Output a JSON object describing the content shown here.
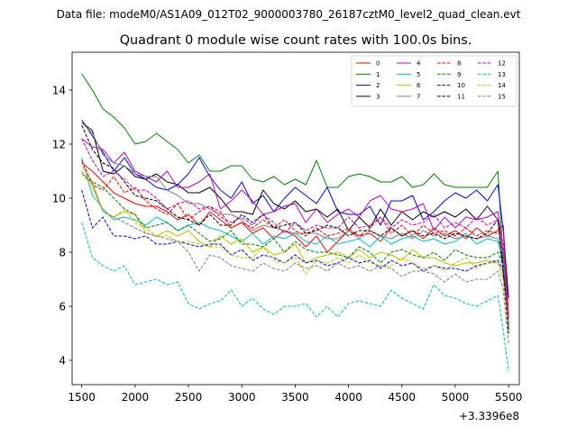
{
  "suptitle": "Data file: modeM0/AS1A09_012T02_9000003780_26187cztM0_level2_quad_clean.evt",
  "chart_data": {
    "type": "line",
    "title": "Quadrant 0 module wise count rates with 100.0s bins.",
    "xlabel": "",
    "ylabel": "",
    "x_offset_label": "+3.3396e8",
    "xlim": [
      1410,
      5600
    ],
    "ylim": [
      3.1,
      15.4
    ],
    "xticks": [
      1500,
      2000,
      2500,
      3000,
      3500,
      4000,
      4500,
      5000,
      5500
    ],
    "xtick_labels": [
      "1500",
      "2000",
      "2500",
      "3000",
      "3500",
      "4000",
      "4500",
      "5000",
      "5500"
    ],
    "yticks": [
      4,
      6,
      8,
      10,
      12,
      14
    ],
    "ytick_labels": [
      "4",
      "6",
      "8",
      "10",
      "12",
      "14"
    ],
    "legend_position": "top-right",
    "x": [
      1500,
      1600,
      1700,
      1800,
      1900,
      2000,
      2100,
      2200,
      2300,
      2400,
      2500,
      2600,
      2700,
      2800,
      2900,
      3000,
      3100,
      3200,
      3300,
      3400,
      3500,
      3600,
      3700,
      3800,
      3900,
      4000,
      4100,
      4200,
      4300,
      4400,
      4500,
      4600,
      4700,
      4800,
      4900,
      5000,
      5100,
      5200,
      5300,
      5400,
      5450,
      5500
    ],
    "series": [
      {
        "name": "0",
        "color": "#ff0000",
        "dash": "solid",
        "values": [
          11.3,
          11.0,
          10.6,
          10.2,
          10.0,
          9.8,
          9.7,
          9.7,
          9.5,
          9.2,
          9.4,
          9.0,
          9.5,
          9.2,
          8.9,
          9.1,
          8.7,
          8.9,
          8.5,
          8.8,
          8.6,
          8.2,
          8.6,
          8.0,
          8.4,
          8.8,
          8.6,
          8.7,
          8.4,
          8.9,
          8.6,
          8.8,
          8.5,
          8.9,
          8.6,
          8.8,
          8.5,
          8.9,
          8.6,
          8.8,
          9.0,
          5.6
        ]
      },
      {
        "name": "1",
        "color": "#008000",
        "dash": "solid",
        "values": [
          14.6,
          14.0,
          13.3,
          13.0,
          12.6,
          12.0,
          12.1,
          12.4,
          12.1,
          11.8,
          11.3,
          11.6,
          11.0,
          11.0,
          11.2,
          11.2,
          10.7,
          10.6,
          10.8,
          10.5,
          10.7,
          10.5,
          11.4,
          10.4,
          10.4,
          10.8,
          10.9,
          10.8,
          10.6,
          10.6,
          10.8,
          10.4,
          10.5,
          10.9,
          10.5,
          10.4,
          10.4,
          10.4,
          10.4,
          11.0,
          7.6,
          6.4
        ]
      },
      {
        "name": "2",
        "color": "#0000ff",
        "dash": "solid",
        "values": [
          12.9,
          12.3,
          11.7,
          11.0,
          11.5,
          10.9,
          10.7,
          10.4,
          10.3,
          10.5,
          10.9,
          11.5,
          10.8,
          10.3,
          10.0,
          10.6,
          9.8,
          10.1,
          9.5,
          10.0,
          10.4,
          10.1,
          9.8,
          10.4,
          9.5,
          9.4,
          9.4,
          9.7,
          9.0,
          9.9,
          9.9,
          10.1,
          9.2,
          9.5,
          9.9,
          10.2,
          10.0,
          10.3,
          9.9,
          10.5,
          8.8,
          6.3
        ]
      },
      {
        "name": "3",
        "color": "#000000",
        "dash": "solid",
        "values": [
          12.8,
          12.5,
          11.0,
          10.9,
          11.2,
          10.8,
          10.7,
          10.9,
          10.6,
          10.5,
          10.2,
          10.2,
          10.4,
          10.0,
          9.5,
          9.5,
          9.4,
          10.3,
          9.8,
          9.6,
          9.9,
          9.5,
          9.6,
          9.3,
          9.6,
          8.8,
          9.3,
          8.9,
          9.6,
          9.0,
          9.5,
          9.2,
          9.5,
          9.3,
          9.5,
          9.3,
          9.6,
          9.2,
          9.7,
          9.2,
          7.5,
          5.3
        ]
      },
      {
        "name": "4",
        "color": "#bf00bf",
        "dash": "solid",
        "values": [
          12.2,
          11.9,
          11.8,
          11.3,
          11.7,
          11.0,
          10.8,
          10.6,
          11.0,
          10.4,
          10.4,
          10.6,
          10.9,
          9.6,
          9.9,
          10.3,
          9.9,
          9.4,
          9.5,
          9.7,
          9.8,
          9.1,
          9.6,
          9.1,
          9.4,
          9.6,
          9.3,
          9.9,
          10.1,
          9.6,
          9.5,
          9.6,
          9.8,
          8.8,
          9.3,
          8.9,
          9.3,
          9.2,
          9.3,
          9.5,
          8.0,
          5.5
        ]
      },
      {
        "name": "5",
        "color": "#00bfbf",
        "dash": "solid",
        "values": [
          11.5,
          10.1,
          9.6,
          9.2,
          9.3,
          9.2,
          9.0,
          9.3,
          9.1,
          8.8,
          9.0,
          9.1,
          8.9,
          8.8,
          8.6,
          8.4,
          8.7,
          8.3,
          8.6,
          8.5,
          8.7,
          8.4,
          8.3,
          8.6,
          8.3,
          8.4,
          8.5,
          8.2,
          8.6,
          8.3,
          8.5,
          8.6,
          8.4,
          8.5,
          8.3,
          8.4,
          8.7,
          8.3,
          8.5,
          8.4,
          7.5,
          5.3
        ]
      },
      {
        "name": "6",
        "color": "#bfbf00",
        "dash": "solid",
        "values": [
          11.2,
          10.6,
          9.5,
          9.3,
          9.5,
          9.4,
          8.7,
          8.6,
          8.8,
          8.6,
          8.8,
          8.4,
          8.2,
          8.6,
          8.3,
          8.5,
          8.0,
          8.2,
          7.9,
          8.0,
          8.3,
          7.6,
          7.8,
          7.9,
          8.0,
          7.8,
          8.1,
          7.8,
          8.0,
          7.9,
          7.7,
          8.1,
          7.8,
          7.8,
          7.6,
          7.5,
          7.6,
          7.6,
          7.7,
          7.6,
          7.0,
          5.1
        ]
      },
      {
        "name": "7",
        "color": "#808080",
        "dash": "solid",
        "values": [
          12.8,
          12.4,
          11.6,
          11.3,
          11.2,
          10.9,
          10.8,
          10.8,
          10.3,
          10.1,
          9.8,
          9.8,
          9.6,
          9.4,
          9.4,
          9.2,
          8.8,
          9.0,
          8.9,
          8.8,
          8.7,
          8.7,
          8.7,
          8.5,
          8.5,
          8.8,
          8.5,
          8.8,
          8.6,
          8.5,
          8.7,
          8.5,
          8.8,
          8.6,
          8.7,
          8.5,
          8.6,
          8.5,
          8.6,
          8.5,
          7.9,
          5.3
        ]
      },
      {
        "name": "8",
        "color": "#ff0000",
        "dash": "dashed",
        "values": [
          11.4,
          10.5,
          10.3,
          10.8,
          10.2,
          10.4,
          9.9,
          9.6,
          9.4,
          9.8,
          9.2,
          9.5,
          9.7,
          9.5,
          8.9,
          9.1,
          8.9,
          9.2,
          8.9,
          9.2,
          8.8,
          8.6,
          8.9,
          8.6,
          8.7,
          8.9,
          8.6,
          8.9,
          9.3,
          8.7,
          9.0,
          8.6,
          9.0,
          8.7,
          8.8,
          8.6,
          8.9,
          8.6,
          8.8,
          8.7,
          8.8,
          5.1
        ]
      },
      {
        "name": "9",
        "color": "#008000",
        "dash": "dashed",
        "values": [
          10.9,
          10.6,
          10.4,
          10.0,
          9.6,
          9.4,
          8.9,
          9.0,
          9.1,
          8.8,
          9.0,
          8.7,
          8.4,
          8.5,
          8.8,
          8.3,
          8.3,
          8.2,
          8.5,
          8.0,
          8.4,
          8.1,
          8.0,
          8.0,
          7.9,
          7.8,
          8.2,
          8.0,
          7.6,
          8.0,
          8.1,
          7.9,
          7.8,
          8.0,
          7.7,
          8.1,
          7.9,
          7.8,
          7.8,
          8.0,
          7.5,
          5.3
        ]
      },
      {
        "name": "10",
        "color": "#0000ff",
        "dash": "dashed",
        "values": [
          10.3,
          8.9,
          9.3,
          8.6,
          8.6,
          8.5,
          8.6,
          8.3,
          8.3,
          8.4,
          8.3,
          8.2,
          8.3,
          8.3,
          7.9,
          8.1,
          7.7,
          7.9,
          7.8,
          7.6,
          7.9,
          7.6,
          7.7,
          7.5,
          7.6,
          7.8,
          7.6,
          7.7,
          7.4,
          7.7,
          7.5,
          7.6,
          7.3,
          7.5,
          7.4,
          7.4,
          7.3,
          7.5,
          7.6,
          7.7,
          7.3,
          5.3
        ]
      },
      {
        "name": "11",
        "color": "#000000",
        "dash": "dashed",
        "values": [
          12.7,
          11.8,
          11.3,
          11.1,
          10.6,
          10.1,
          10.0,
          9.9,
          9.6,
          9.3,
          9.2,
          9.0,
          9.4,
          9.0,
          9.0,
          9.4,
          9.1,
          9.4,
          8.9,
          9.0,
          9.1,
          8.7,
          8.8,
          9.0,
          8.9,
          8.6,
          8.8,
          8.8,
          8.6,
          8.9,
          8.6,
          8.8,
          8.6,
          8.7,
          8.5,
          8.7,
          8.6,
          8.5,
          8.7,
          9.2,
          7.2,
          5.0
        ]
      },
      {
        "name": "12",
        "color": "#bf00bf",
        "dash": "dashed",
        "values": [
          12.2,
          11.4,
          10.8,
          11.0,
          10.7,
          10.3,
          10.3,
          10.0,
          9.6,
          9.8,
          9.9,
          9.6,
          9.7,
          9.3,
          9.1,
          9.3,
          9.0,
          9.4,
          9.1,
          8.7,
          9.1,
          8.8,
          9.0,
          8.9,
          8.9,
          9.3,
          8.9,
          9.0,
          9.3,
          8.9,
          9.2,
          9.0,
          9.1,
          9.4,
          8.9,
          9.1,
          8.9,
          9.3,
          9.0,
          9.2,
          8.3,
          5.2
        ]
      },
      {
        "name": "13",
        "color": "#00bfbf",
        "dash": "dashed",
        "values": [
          9.1,
          7.8,
          7.5,
          7.3,
          7.5,
          6.8,
          6.9,
          7.0,
          6.8,
          6.9,
          6.1,
          5.9,
          6.1,
          6.2,
          6.6,
          6.0,
          6.3,
          5.9,
          5.7,
          6.0,
          6.0,
          6.1,
          5.6,
          6.0,
          5.6,
          6.1,
          6.2,
          6.1,
          6.0,
          6.6,
          6.3,
          6.1,
          5.9,
          6.8,
          6.4,
          6.3,
          6.1,
          6.0,
          6.2,
          6.4,
          5.1,
          3.6
        ]
      },
      {
        "name": "14",
        "color": "#bfbf00",
        "dash": "dashed",
        "values": [
          10.9,
          10.4,
          9.5,
          9.3,
          9.6,
          9.1,
          8.9,
          8.6,
          8.6,
          8.4,
          8.4,
          8.3,
          8.2,
          8.2,
          7.9,
          7.8,
          7.8,
          8.2,
          7.7,
          7.6,
          7.8,
          7.2,
          7.7,
          7.6,
          7.8,
          7.6,
          7.9,
          7.6,
          7.5,
          7.5,
          7.8,
          7.6,
          7.4,
          7.5,
          7.3,
          7.6,
          7.8,
          7.4,
          7.6,
          7.6,
          7.0,
          5.3
        ]
      },
      {
        "name": "15",
        "color": "#808080",
        "dash": "dashed",
        "values": [
          11.0,
          10.5,
          9.5,
          9.3,
          9.1,
          8.9,
          8.7,
          8.6,
          8.5,
          8.4,
          8.0,
          7.3,
          7.9,
          7.8,
          7.5,
          7.4,
          7.3,
          7.6,
          7.4,
          7.3,
          7.6,
          7.4,
          7.5,
          7.3,
          7.6,
          7.4,
          7.5,
          7.3,
          7.5,
          7.4,
          7.1,
          7.3,
          7.3,
          7.2,
          6.9,
          7.2,
          6.9,
          7.0,
          7.0,
          7.3,
          6.6,
          4.6
        ]
      }
    ]
  }
}
